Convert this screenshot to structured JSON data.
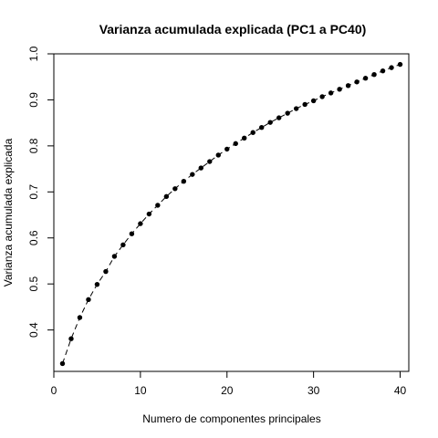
{
  "chart_data": {
    "type": "scatter",
    "title": "Varianza acumulada explicada (PC1 a PC40)",
    "xlabel": "Numero de componentes principales",
    "ylabel": "Varianza acumulada explicada",
    "xlim": [
      0,
      41
    ],
    "ylim": [
      0.31,
      1.0
    ],
    "x_ticks": [
      0,
      10,
      20,
      30,
      40
    ],
    "y_ticks": [
      0.4,
      0.5,
      0.6,
      0.7,
      0.8,
      0.9,
      1.0
    ],
    "x_tick_labels": [
      "0",
      "10",
      "20",
      "30",
      "40"
    ],
    "y_tick_labels": [
      "0.4",
      "0.5",
      "0.6",
      "0.7",
      "0.8",
      "0.9",
      "1.0"
    ],
    "grid": false,
    "legend": "none",
    "line_style": "dashed",
    "colors": {
      "points": "#000000",
      "line": "#000000",
      "frame": "#000000"
    },
    "series": [
      {
        "x": [
          1,
          2,
          3,
          4,
          5,
          6,
          7,
          8,
          9,
          10,
          11,
          12,
          13,
          14,
          15,
          16,
          17,
          18,
          19,
          20,
          21,
          22,
          23,
          24,
          25,
          26,
          27,
          28,
          29,
          30,
          31,
          32,
          33,
          34,
          35,
          36,
          37,
          38,
          39,
          40
        ],
        "values": [
          0.327,
          0.381,
          0.427,
          0.466,
          0.499,
          0.527,
          0.56,
          0.585,
          0.609,
          0.631,
          0.652,
          0.671,
          0.69,
          0.707,
          0.723,
          0.738,
          0.752,
          0.766,
          0.78,
          0.793,
          0.805,
          0.817,
          0.829,
          0.84,
          0.851,
          0.861,
          0.871,
          0.881,
          0.89,
          0.898,
          0.907,
          0.915,
          0.923,
          0.931,
          0.939,
          0.947,
          0.955,
          0.963,
          0.97,
          0.977
        ]
      }
    ]
  }
}
